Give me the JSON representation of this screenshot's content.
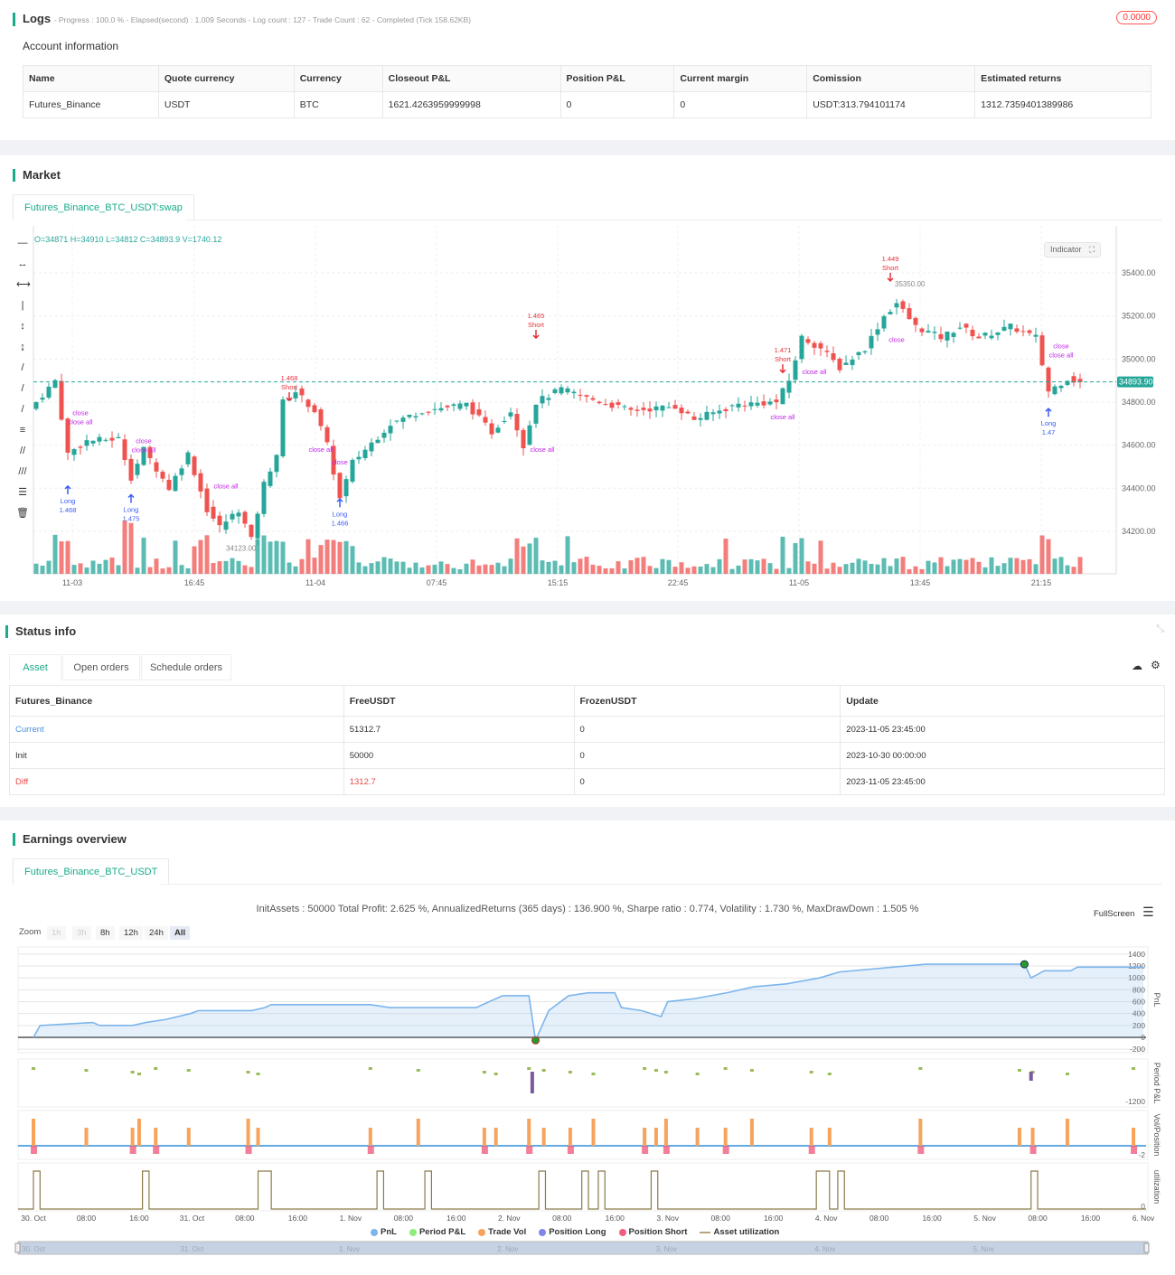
{
  "logs": {
    "title": "Logs",
    "summary": "- Progress : 100.0 % - Elapsed(second) : 1.009  Seconds - Log count : 127 - Trade Count : 62 - Completed (Tick 158.62KB)",
    "badge": "0.0000"
  },
  "account": {
    "title": "Account information",
    "headers": [
      "Name",
      "Quote currency",
      "Currency",
      "Closeout P&L",
      "Position P&L",
      "Current margin",
      "Comission",
      "Estimated returns"
    ],
    "row": [
      "Futures_Binance",
      "USDT",
      "BTC",
      "1621.4263959999998",
      "0",
      "0",
      "USDT:313.794101174",
      "1312.7359401389986"
    ]
  },
  "market": {
    "title": "Market",
    "tab": "Futures_Binance_BTC_USDT:swap",
    "ohlc": "O=34871 H=34910 L=34812 C=34893.9 V=1740.12",
    "indicator_label": "Indicator",
    "last_price": "34893.90",
    "high_mark": "35350.00",
    "low_mark": "34123.00",
    "y_ticks": [
      "35400.00",
      "35200.00",
      "35000.00",
      "34800.00",
      "34600.00",
      "34400.00",
      "34200.00"
    ],
    "x_ticks": [
      "11-03",
      "16:45",
      "11-04",
      "07:45",
      "15:15",
      "22:45",
      "11-05",
      "13:45",
      "21:15"
    ],
    "colors": {
      "up": "#26a69a",
      "down": "#ef5350",
      "long": "#3b5cf6",
      "close": "#c026e6",
      "short": "#e8303a"
    },
    "price_path": [
      [
        0,
        34800
      ],
      [
        3,
        34900
      ],
      [
        5,
        34560
      ],
      [
        8,
        34620
      ],
      [
        13,
        34630
      ],
      [
        15,
        34450
      ],
      [
        17,
        34580
      ],
      [
        21,
        34400
      ],
      [
        24,
        34560
      ],
      [
        27,
        34300
      ],
      [
        29,
        34220
      ],
      [
        32,
        34300
      ],
      [
        34,
        34160
      ],
      [
        36,
        34420
      ],
      [
        38,
        34560
      ],
      [
        39,
        34800
      ],
      [
        41,
        34850
      ],
      [
        44,
        34760
      ],
      [
        46,
        34600
      ],
      [
        48,
        34350
      ],
      [
        50,
        34520
      ],
      [
        56,
        34700
      ],
      [
        61,
        34760
      ],
      [
        68,
        34790
      ],
      [
        72,
        34660
      ],
      [
        75,
        34760
      ],
      [
        77,
        34600
      ],
      [
        79,
        34800
      ],
      [
        83,
        34860
      ],
      [
        87,
        34820
      ],
      [
        94,
        34760
      ],
      [
        101,
        34780
      ],
      [
        104,
        34720
      ],
      [
        111,
        34790
      ],
      [
        117,
        34800
      ],
      [
        119,
        34900
      ],
      [
        121,
        35100
      ],
      [
        124,
        35050
      ],
      [
        127,
        34960
      ],
      [
        131,
        35050
      ],
      [
        134,
        35200
      ],
      [
        136,
        35260
      ],
      [
        139,
        35150
      ],
      [
        143,
        35100
      ],
      [
        146,
        35150
      ],
      [
        149,
        35100
      ],
      [
        154,
        35150
      ],
      [
        158,
        35100
      ],
      [
        160,
        34850
      ],
      [
        163,
        34910
      ],
      [
        165,
        34890
      ]
    ],
    "annotations": [
      {
        "i": 5,
        "p": 34330,
        "text": "Long",
        "type": "long"
      },
      {
        "i": 5,
        "p": 34290,
        "text": "1.468",
        "type": "long"
      },
      {
        "i": 15,
        "p": 34290,
        "text": "Long",
        "type": "long"
      },
      {
        "i": 15,
        "p": 34255,
        "text": "1.475",
        "type": "long"
      },
      {
        "i": 48,
        "p": 34270,
        "text": "Long",
        "type": "long"
      },
      {
        "i": 48,
        "p": 34240,
        "text": "1.466",
        "type": "long"
      },
      {
        "i": 160,
        "p": 34690,
        "text": "Long",
        "type": "long"
      },
      {
        "i": 160,
        "p": 34655,
        "text": "1.47",
        "type": "long"
      },
      {
        "i": 79,
        "p": 35190,
        "text": "1.465",
        "type": "short"
      },
      {
        "i": 79,
        "p": 35155,
        "text": "Short",
        "type": "short"
      },
      {
        "i": 135,
        "p": 35455,
        "text": "1.449",
        "type": "short"
      },
      {
        "i": 135,
        "p": 35420,
        "text": "Short",
        "type": "short"
      },
      {
        "i": 118,
        "p": 35030,
        "text": "1.471",
        "type": "short"
      },
      {
        "i": 118,
        "p": 34995,
        "text": "Short",
        "type": "short"
      },
      {
        "i": 40,
        "p": 34900,
        "text": "1.468",
        "type": "short"
      },
      {
        "i": 40,
        "p": 34865,
        "text": "Short",
        "type": "short"
      },
      {
        "i": 7,
        "p": 34740,
        "text": "close",
        "type": "close"
      },
      {
        "i": 7,
        "p": 34710,
        "text": "close all",
        "type": "close"
      },
      {
        "i": 17,
        "p": 34610,
        "text": "close",
        "type": "close"
      },
      {
        "i": 17,
        "p": 34585,
        "text": "close all",
        "type": "close"
      },
      {
        "i": 30,
        "p": 34400,
        "text": "close all",
        "type": "close"
      },
      {
        "i": 80,
        "p": 34570,
        "text": "close all",
        "type": "close"
      },
      {
        "i": 118,
        "p": 34720,
        "text": "close all",
        "type": "close"
      },
      {
        "i": 123,
        "p": 34930,
        "text": "close all",
        "type": "close"
      },
      {
        "i": 136,
        "p": 35080,
        "text": "close",
        "type": "close"
      },
      {
        "i": 162,
        "p": 35050,
        "text": "close",
        "type": "close"
      },
      {
        "i": 162,
        "p": 35030,
        "text": "close all",
        "type": "close"
      },
      {
        "i": 48,
        "p": 34510,
        "text": "close",
        "type": "close"
      },
      {
        "i": 45,
        "p": 34570,
        "text": "close all",
        "type": "close"
      }
    ]
  },
  "status": {
    "title": "Status info",
    "tabs": [
      "Asset",
      "Open orders",
      "Schedule orders"
    ],
    "headers": [
      "Futures_Binance",
      "FreeUSDT",
      "FrozenUSDT",
      "Update"
    ],
    "rows": [
      [
        "Current",
        "51312.7",
        "0",
        "2023-11-05 23:45:00"
      ],
      [
        "Init",
        "50000",
        "0",
        "2023-10-30 00:00:00"
      ],
      [
        "Diff",
        "1312.7",
        "0",
        "2023-11-05 23:45:00"
      ]
    ]
  },
  "earnings": {
    "title": "Earnings overview",
    "tab": "Futures_Binance_BTC_USDT",
    "summary": "InitAssets : 50000 Total Profit: 2.625 %, AnnualizedReturns (365 days) : 136.900 %, Sharpe ratio : 0.774, Volatility : 1.730 %, MaxDrawDown : 1.505 %",
    "fullscreen": "FullScreen",
    "zoom_label": "Zoom",
    "zoom_buttons": [
      "1h",
      "3h",
      "8h",
      "12h",
      "24h",
      "All"
    ],
    "zoom_active": "All",
    "pnl_ticks": [
      "1400",
      "1200",
      "1000",
      "800",
      "600",
      "400",
      "200",
      "0",
      "-200"
    ],
    "axis_titles": [
      "PnL",
      "Period P&L",
      "Vol/Position",
      "utilization"
    ],
    "period_min": "-1200",
    "vol_min": "-2",
    "util_min": "0",
    "x_ticks": [
      "30. Oct",
      "08:00",
      "16:00",
      "31. Oct",
      "08:00",
      "16:00",
      "1. Nov",
      "08:00",
      "16:00",
      "2. Nov",
      "08:00",
      "16:00",
      "3. Nov",
      "08:00",
      "16:00",
      "4. Nov",
      "08:00",
      "16:00",
      "5. Nov",
      "08:00",
      "16:00",
      "6. Nov"
    ],
    "navigator_ticks": [
      "30. Oct",
      "31. Oct",
      "1. Nov",
      "2. Nov",
      "3. Nov",
      "4. Nov",
      "5. Nov"
    ],
    "legend": [
      {
        "name": "PnL",
        "color": "#7cb5ec"
      },
      {
        "name": "Period P&L",
        "color": "#90ed7d"
      },
      {
        "name": "Trade Vol",
        "color": "#f7a35c"
      },
      {
        "name": "Position Long",
        "color": "#8085e9"
      },
      {
        "name": "Position Short",
        "color": "#f15c80"
      },
      {
        "name": "Asset utilization",
        "color": "#b5a878"
      }
    ],
    "pnl_series": [
      [
        "10-30 00:00",
        0
      ],
      [
        "10-30 01:00",
        200
      ],
      [
        "10-30 09:00",
        250
      ],
      [
        "10-30 10:00",
        200
      ],
      [
        "10-30 15:00",
        200
      ],
      [
        "10-30 17:00",
        250
      ],
      [
        "10-30 20:00",
        300
      ],
      [
        "10-30 23:45",
        400
      ],
      [
        "10-31 01:00",
        450
      ],
      [
        "10-31 09:00",
        450
      ],
      [
        "10-31 11:00",
        500
      ],
      [
        "10-31 12:00",
        550
      ],
      [
        "11-01 03:00",
        550
      ],
      [
        "11-01 06:00",
        500
      ],
      [
        "11-01 19:00",
        500
      ],
      [
        "11-01 21:00",
        600
      ],
      [
        "11-01 23:00",
        700
      ],
      [
        "11-02 03:00",
        700
      ],
      [
        "11-02 04:00",
        -50
      ],
      [
        "11-02 06:00",
        450
      ],
      [
        "11-02 09:00",
        700
      ],
      [
        "11-02 12:00",
        750
      ],
      [
        "11-02 16:00",
        750
      ],
      [
        "11-02 17:00",
        500
      ],
      [
        "11-02 20:00",
        450
      ],
      [
        "11-02 23:00",
        350
      ],
      [
        "11-03 00:00",
        600
      ],
      [
        "11-03 04:00",
        650
      ],
      [
        "11-03 09:00",
        750
      ],
      [
        "11-03 13:00",
        850
      ],
      [
        "11-03 18:00",
        900
      ],
      [
        "11-03 23:00",
        1000
      ],
      [
        "11-04 02:00",
        1100
      ],
      [
        "11-04 15:00",
        1230
      ],
      [
        "11-05 06:00",
        1230
      ],
      [
        "11-05 07:00",
        1000
      ],
      [
        "11-05 09:00",
        1120
      ],
      [
        "11-05 13:00",
        1120
      ],
      [
        "11-05 14:00",
        1180
      ],
      [
        "11-06 00:00",
        1180
      ]
    ],
    "trade_times": [
      "10-30 00:00",
      "10-30 08:00",
      "10-30 15:00",
      "10-30 16:00",
      "10-30 18:30",
      "10-30 23:30",
      "10-31 08:30",
      "10-31 10:00",
      "11-01 03:00",
      "11-01 10:15",
      "11-01 20:15",
      "11-01 22:00",
      "11-02 03:00",
      "11-02 05:15",
      "11-02 09:15",
      "11-02 12:45",
      "11-02 20:30",
      "11-02 22:15",
      "11-02 23:45",
      "11-03 04:30",
      "11-03 08:45",
      "11-03 12:45",
      "11-03 21:45",
      "11-04 00:30",
      "11-04 14:15",
      "11-05 05:15",
      "11-05 07:15",
      "11-05 12:30",
      "11-05 22:30"
    ],
    "utilization_periods": [
      [
        "10-30 00:00",
        "10-30 01:00"
      ],
      [
        "10-30 16:30",
        "10-30 17:30"
      ],
      [
        "10-31 10:00",
        "10-31 12:00"
      ],
      [
        "11-01 04:00",
        "11-01 05:00"
      ],
      [
        "11-01 11:15",
        "11-01 12:15"
      ],
      [
        "11-02 04:30",
        "11-02 05:30"
      ],
      [
        "11-02 11:00",
        "11-02 12:00"
      ],
      [
        "11-02 13:30",
        "11-02 14:30"
      ],
      [
        "11-02 21:30",
        "11-02 22:30"
      ],
      [
        "11-03 22:30",
        "11-04 00:30"
      ],
      [
        "11-04 01:45",
        "11-04 02:45"
      ],
      [
        "11-05 07:00",
        "11-05 08:00"
      ]
    ]
  }
}
